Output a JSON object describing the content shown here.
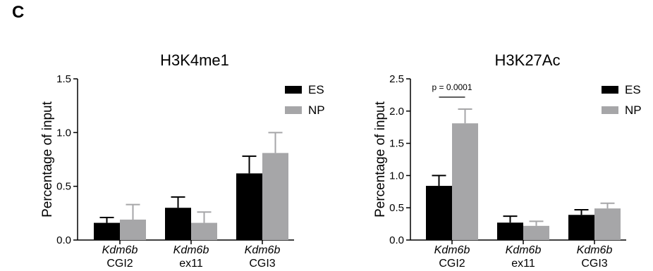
{
  "panel_label": "C",
  "colors": {
    "ES": "#000000",
    "NP": "#a6a6a8"
  },
  "chart_data": [
    {
      "type": "bar",
      "title": "H3K4me1",
      "ylabel": "Percentage of input",
      "ylim": [
        0,
        1.5
      ],
      "yticks": [
        "0.0",
        "0.5",
        "1.0",
        "1.5"
      ],
      "categories": [
        {
          "gene": "Kdm6b",
          "region": "CGI2"
        },
        {
          "gene": "Kdm6b",
          "region": "ex11"
        },
        {
          "gene": "Kdm6b",
          "region": "CGI3"
        }
      ],
      "series": [
        {
          "name": "ES",
          "values": [
            0.16,
            0.3,
            0.62
          ],
          "errors": [
            0.05,
            0.1,
            0.16
          ]
        },
        {
          "name": "NP",
          "values": [
            0.19,
            0.16,
            0.81
          ],
          "errors": [
            0.14,
            0.1,
            0.19
          ]
        }
      ],
      "legend": "top-right",
      "annotation": ""
    },
    {
      "type": "bar",
      "title": "H3K27Ac",
      "ylabel": "Percentage of input",
      "ylim": [
        0,
        2.5
      ],
      "yticks": [
        "0.0",
        "0.5",
        "1.0",
        "1.5",
        "2.0",
        "2.5"
      ],
      "categories": [
        {
          "gene": "Kdm6b",
          "region": "CGI2"
        },
        {
          "gene": "Kdm6b",
          "region": "ex11"
        },
        {
          "gene": "Kdm6b",
          "region": "CGI3"
        }
      ],
      "series": [
        {
          "name": "ES",
          "values": [
            0.84,
            0.27,
            0.39
          ],
          "errors": [
            0.16,
            0.1,
            0.08
          ]
        },
        {
          "name": "NP",
          "values": [
            1.81,
            0.22,
            0.49
          ],
          "errors": [
            0.22,
            0.07,
            0.08
          ]
        }
      ],
      "legend": "top-right",
      "annotation": "p = 0.0001"
    }
  ]
}
